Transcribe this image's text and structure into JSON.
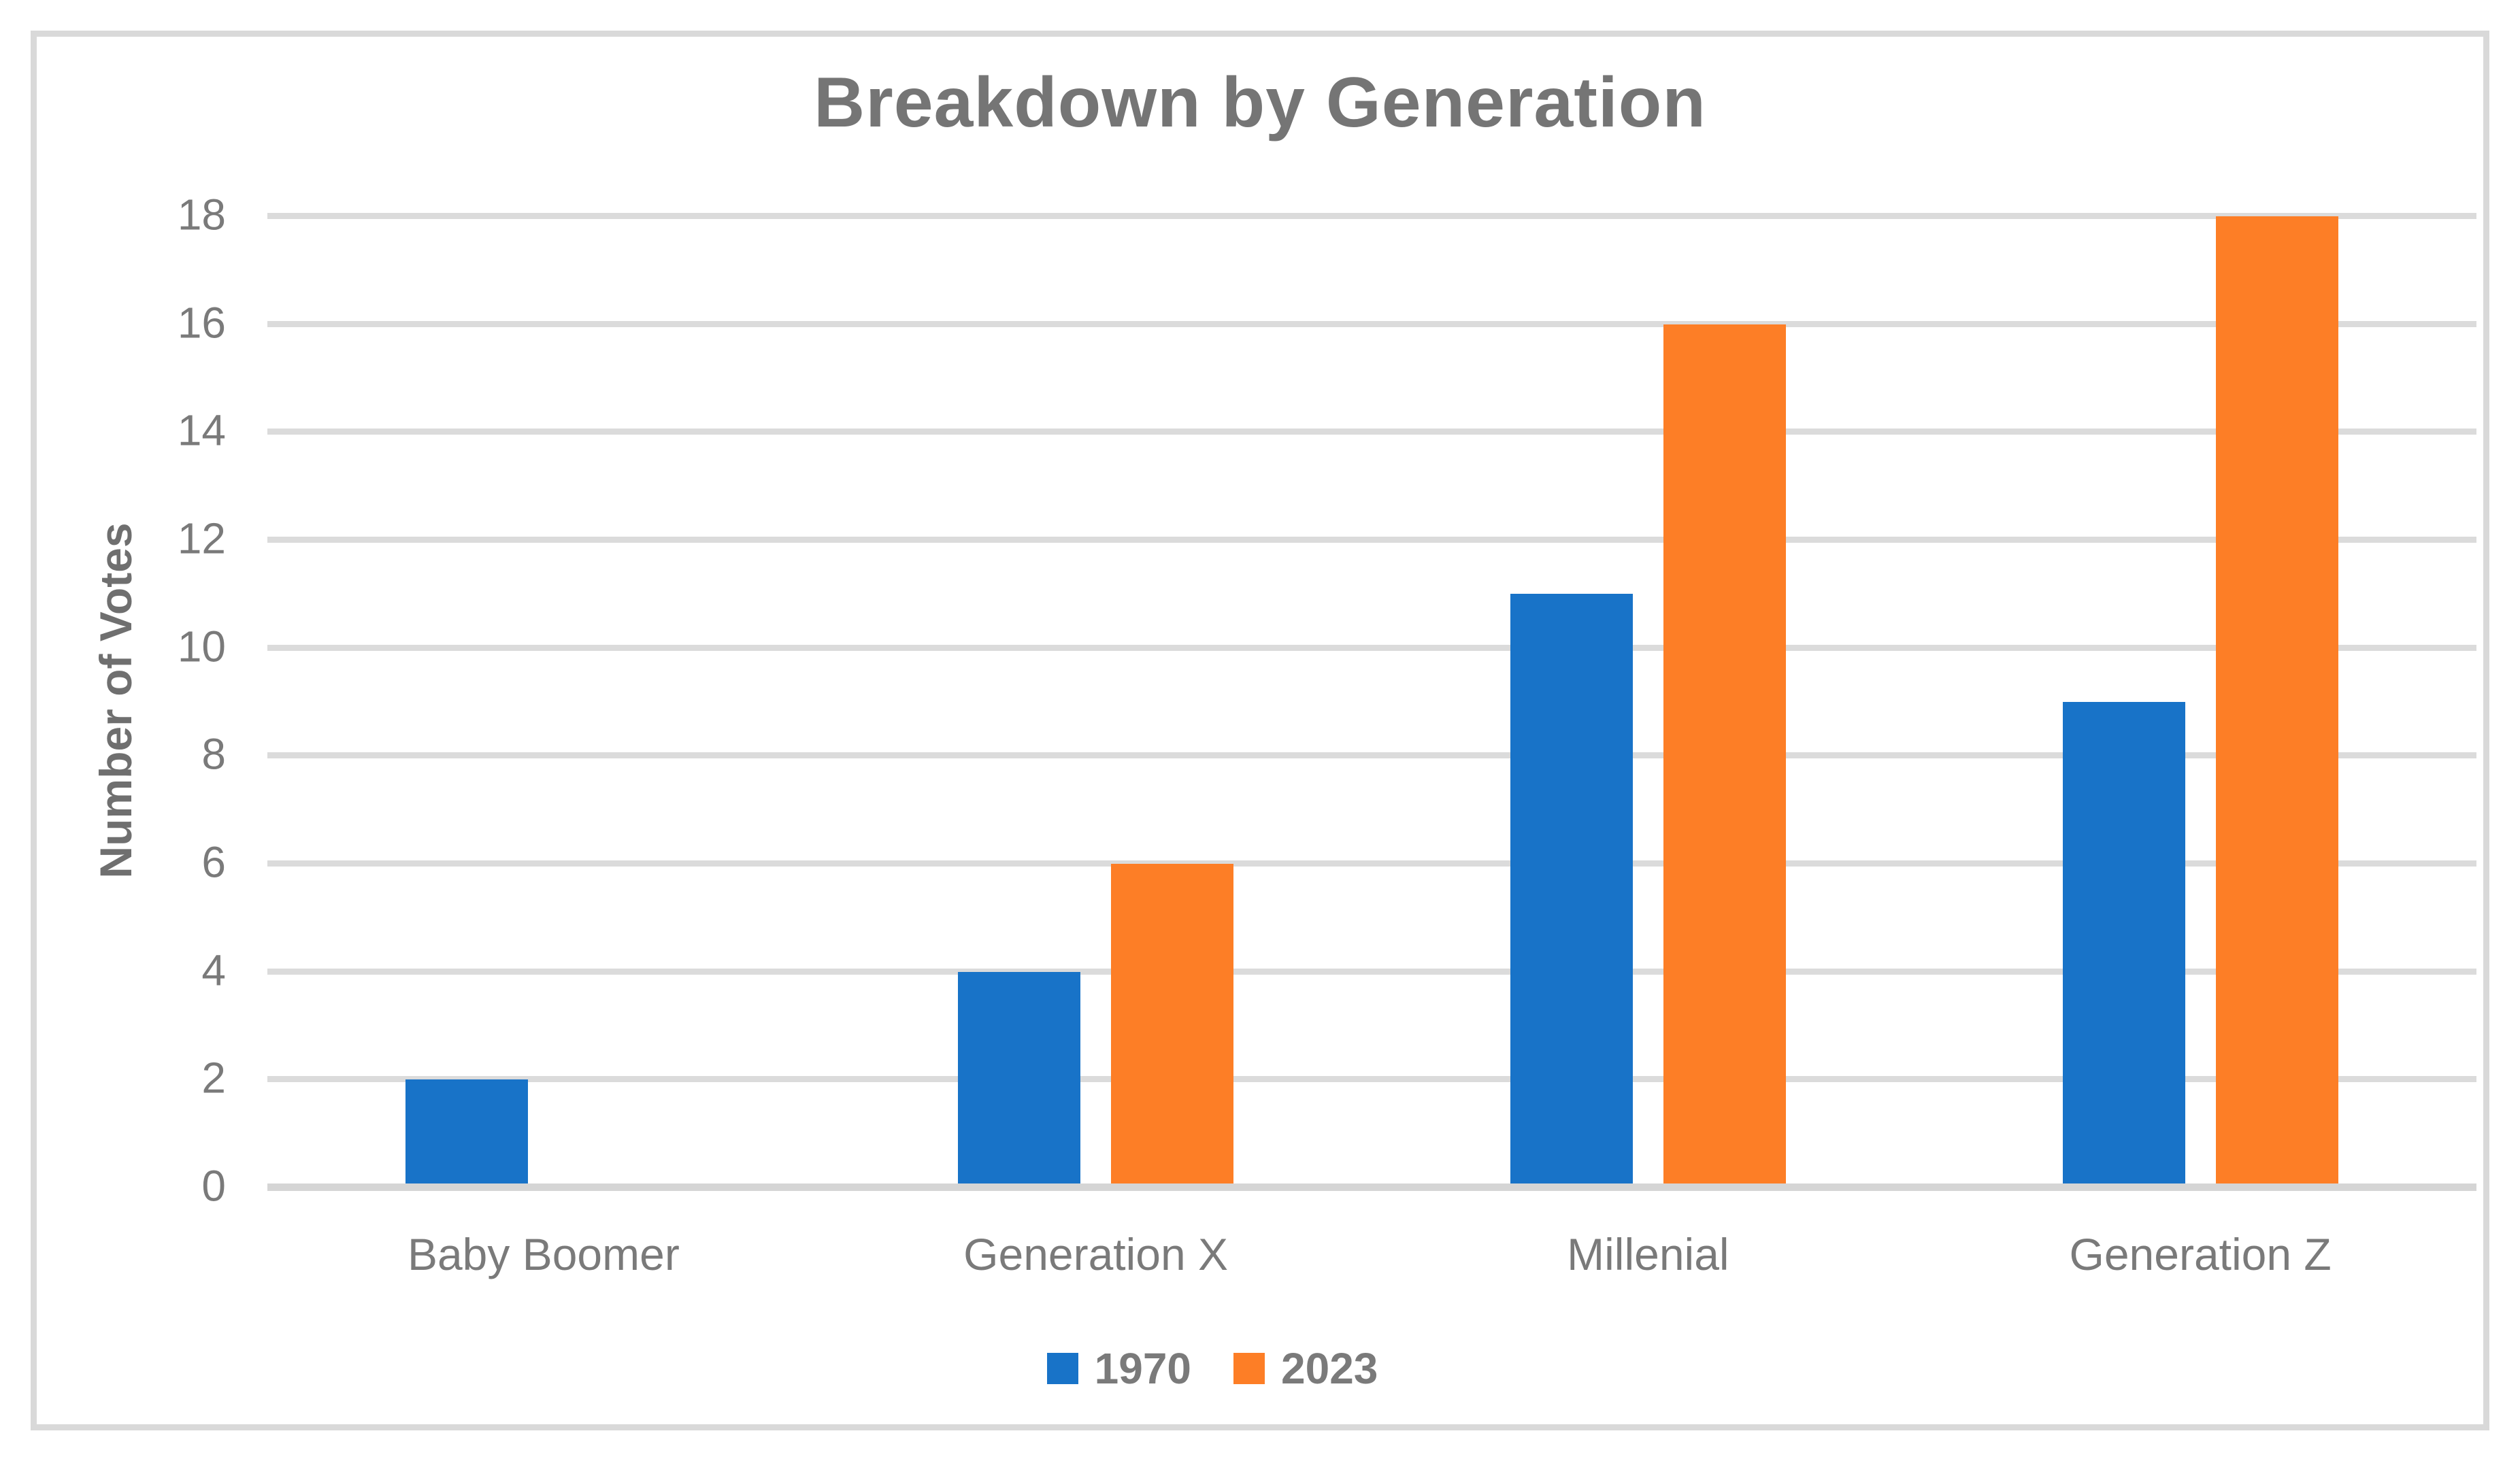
{
  "chart_data": {
    "type": "bar",
    "title": "Breakdown by Generation",
    "ylabel": "Number of Votes",
    "xlabel": "",
    "categories": [
      "Baby Boomer",
      "Generation X",
      "Millenial",
      "Generation Z"
    ],
    "series": [
      {
        "name": "1970",
        "color": "#1873C8",
        "values": [
          2,
          4,
          11,
          9
        ]
      },
      {
        "name": "2023",
        "color": "#FD7E26",
        "values": [
          0,
          6,
          16,
          18
        ]
      }
    ],
    "ylim": [
      0,
      18
    ],
    "ytick_step": 2,
    "yticks": [
      "0",
      "2",
      "4",
      "6",
      "8",
      "10",
      "12",
      "14",
      "16",
      "18"
    ],
    "grid": true,
    "legend_position": "bottom"
  },
  "colors": {
    "gridline": "#DBDBDB",
    "axis_line": "#D5D5D5",
    "frame_border": "#D9D9D9",
    "title_text": "#757575",
    "tick_text": "#7A7A7A",
    "background": "#FFFFFF"
  }
}
